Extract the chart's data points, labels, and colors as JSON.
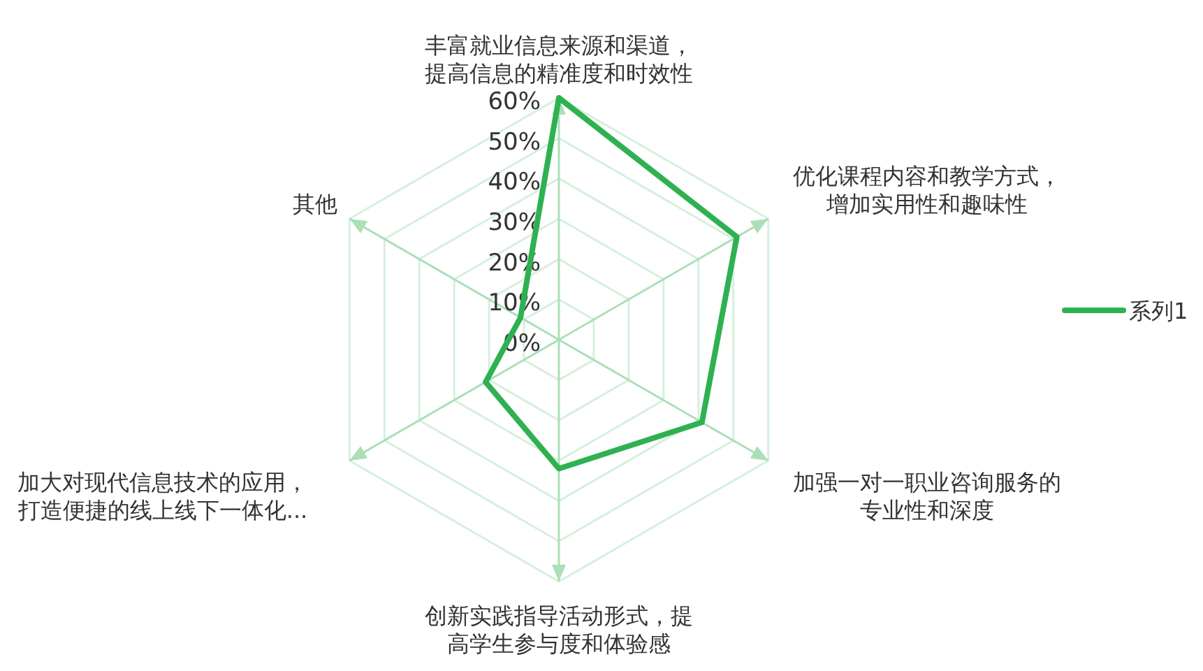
{
  "chart_data": {
    "type": "radar",
    "categories": [
      "丰富就业信息来源和渠道，提高信息的精准度和时效性",
      "优化课程内容和教学方式，增加实用性和趣味性",
      "加强一对一职业咨询服务的专业性和深度",
      "创新实践指导活动形式，提高学生参与度和体验感",
      "加大对现代信息技术的应用，打造便捷的线上线下一体化...",
      "其他"
    ],
    "series": [
      {
        "name": "系列1",
        "color": "#2fb152",
        "values": [
          60,
          51,
          41,
          32,
          21,
          11
        ]
      }
    ],
    "ylim": [
      0,
      60
    ],
    "yticks": [
      {
        "value": 0,
        "label": "0%"
      },
      {
        "value": 10,
        "label": "10%"
      },
      {
        "value": 20,
        "label": "20%"
      },
      {
        "value": 30,
        "label": "30%"
      },
      {
        "value": 40,
        "label": "40%"
      },
      {
        "value": 50,
        "label": "50%"
      },
      {
        "value": 60,
        "label": "60%"
      }
    ],
    "grid": true,
    "legend": "right"
  }
}
